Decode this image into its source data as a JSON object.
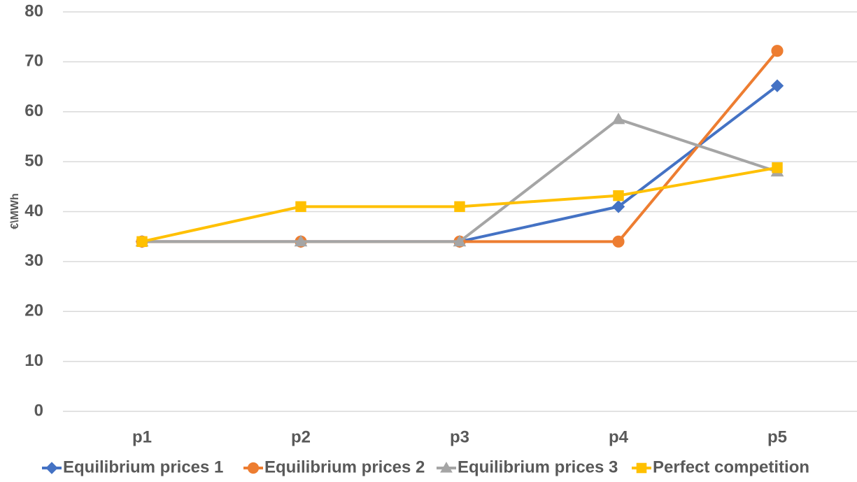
{
  "chart_data": {
    "type": "line",
    "title": "",
    "xlabel": "",
    "ylabel": "€\\MWh",
    "categories": [
      "p1",
      "p2",
      "p3",
      "p4",
      "p5"
    ],
    "ylim": [
      0,
      80
    ],
    "yticks": [
      0,
      10,
      20,
      30,
      40,
      50,
      60,
      70,
      80
    ],
    "grid": "horizontal",
    "legend_position": "bottom",
    "series": [
      {
        "name": "Equilibrium prices 1",
        "values": [
          34,
          34,
          34,
          41,
          65.2
        ],
        "color": "#4472C4",
        "marker": "diamond"
      },
      {
        "name": "Equilibrium prices 2",
        "values": [
          34,
          34,
          34,
          34,
          72.2
        ],
        "color": "#ED7D31",
        "marker": "circle"
      },
      {
        "name": "Equilibrium prices 3",
        "values": [
          34,
          34,
          34,
          58.5,
          48
        ],
        "color": "#A5A5A5",
        "marker": "triangle"
      },
      {
        "name": "Perfect competition",
        "values": [
          34,
          41,
          41,
          43.2,
          48.8
        ],
        "color": "#FFC000",
        "marker": "square"
      }
    ]
  }
}
